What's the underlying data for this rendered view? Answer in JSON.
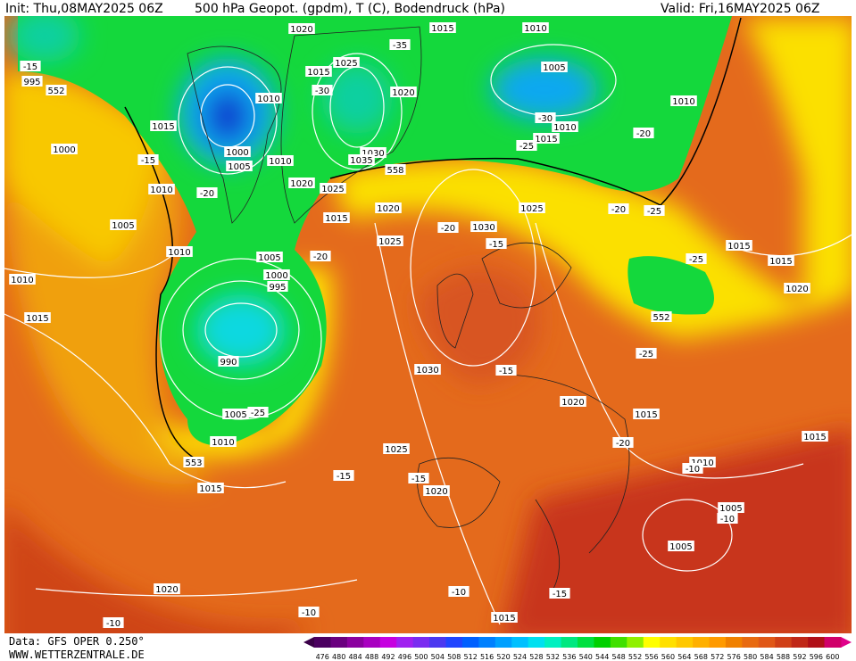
{
  "header": {
    "init": "Init: Thu,08MAY2025 06Z",
    "title": "500 hPa Geopot. (gpdm), T (C), Bodendruck (hPa)",
    "valid": "Valid: Fri,16MAY2025 06Z"
  },
  "footer": {
    "source": "Data: GFS OPER 0.250°",
    "site": "WWW.WETTERZENTRALE.DE"
  },
  "colorbar": {
    "labels": [
      476,
      480,
      484,
      488,
      492,
      496,
      500,
      504,
      508,
      512,
      516,
      520,
      524,
      528,
      532,
      536,
      540,
      544,
      548,
      552,
      556,
      560,
      564,
      568,
      572,
      576,
      580,
      584,
      588,
      592,
      596,
      600
    ],
    "colors": [
      "#4b0060",
      "#6a007f",
      "#8b009f",
      "#a800c0",
      "#c600e0",
      "#a020f0",
      "#7a2cf0",
      "#4b38f0",
      "#2045ff",
      "#0060ff",
      "#0080ff",
      "#00a0ff",
      "#00c0ff",
      "#00e0f0",
      "#00f0c0",
      "#00e880",
      "#00e040",
      "#00d000",
      "#40e000",
      "#90f000",
      "#ffff00",
      "#ffe000",
      "#ffc800",
      "#ffb000",
      "#ff9a00",
      "#f08000",
      "#e86a10",
      "#e05818",
      "#d04018",
      "#c02818",
      "#b01018",
      "#d0006a"
    ]
  },
  "map": {
    "labels": [
      "1020",
      "1015",
      "1010",
      "-15",
      "995",
      "552",
      "-35",
      "1025",
      "1015",
      "1005",
      "-30",
      "1020",
      "1010",
      "1010",
      "-30",
      "1010",
      "1015",
      "1000",
      "1000",
      "1005",
      "-15",
      "1010",
      "1030",
      "1035",
      "558",
      "1015",
      "-25",
      "-20",
      "1020",
      "1025",
      "1010",
      "-20",
      "1020",
      "1015",
      "1025",
      "-20",
      "-25",
      "1005",
      "1010",
      "1030",
      "-20",
      "1025",
      "-15",
      "1015",
      "1015",
      "-25",
      "-20",
      "1005",
      "1010",
      "1000",
      "995",
      "1020",
      "1015",
      "552",
      "990",
      "1030",
      "-15",
      "-25",
      "1020",
      "1015",
      "1005",
      "-25",
      "1010",
      "1025",
      "1015",
      "-20",
      "553",
      "1010",
      "-10",
      "-15",
      "-15",
      "1020",
      "1015",
      "1005",
      "-10",
      "1005",
      "1020",
      "-10",
      "-15",
      "-10",
      "1015",
      "-10"
    ]
  }
}
